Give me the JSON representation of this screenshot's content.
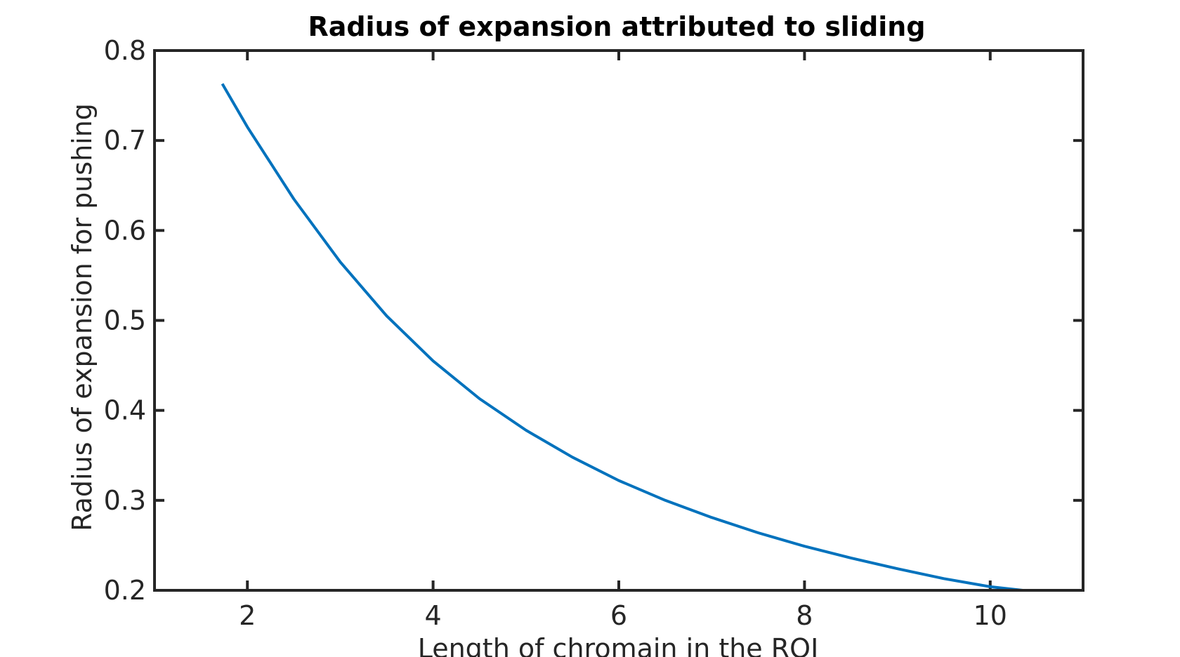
{
  "chart_data": {
    "type": "line",
    "title": "Radius of expansion attributed to sliding",
    "xlabel": "Length of chromain in the ROI",
    "ylabel": "Radius of expansion for pushing",
    "xlim": [
      1,
      11
    ],
    "ylim": [
      0.2,
      0.8
    ],
    "xticks": [
      2,
      4,
      6,
      8,
      10
    ],
    "yticks": [
      0.2,
      0.3,
      0.4,
      0.5,
      0.6,
      0.7,
      0.8
    ],
    "xtick_labels": [
      "2",
      "4",
      "6",
      "8",
      "10"
    ],
    "ytick_labels": [
      "0.2",
      "0.3",
      "0.4",
      "0.5",
      "0.6",
      "0.7",
      "0.8"
    ],
    "grid": false,
    "box": true,
    "series": [
      {
        "color": "#0072BD",
        "x": [
          1.73,
          2.0,
          2.5,
          3.0,
          3.5,
          4.0,
          4.5,
          5.0,
          5.5,
          6.0,
          6.5,
          7.0,
          7.5,
          8.0,
          8.5,
          9.0,
          9.5,
          10.0,
          10.35
        ],
        "y": [
          0.763,
          0.715,
          0.635,
          0.565,
          0.505,
          0.455,
          0.413,
          0.378,
          0.348,
          0.322,
          0.3,
          0.281,
          0.264,
          0.249,
          0.236,
          0.224,
          0.213,
          0.204,
          0.2
        ]
      }
    ]
  }
}
